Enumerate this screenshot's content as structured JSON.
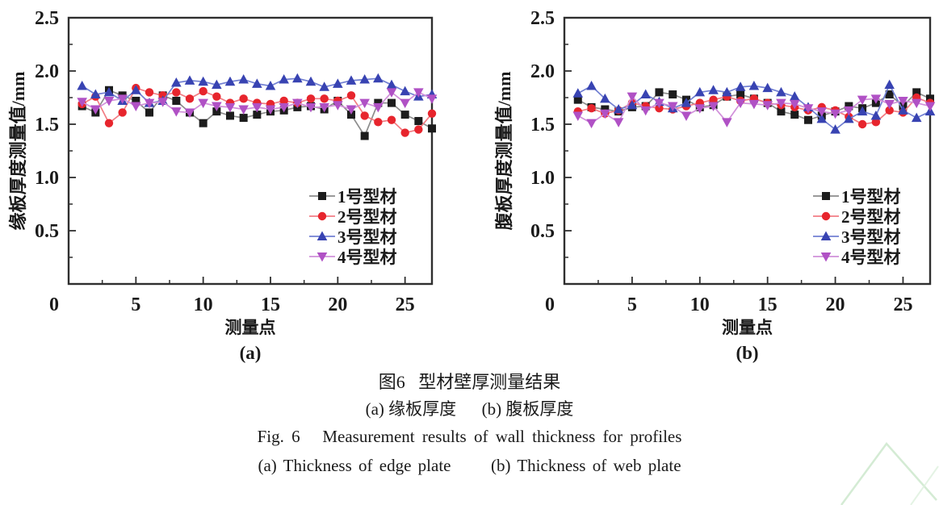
{
  "figure": {
    "caption_zh": "图6   型材壁厚测量结果",
    "caption_sub_zh": "(a) 缘板厚度      (b) 腹板厚度",
    "caption_en": "Fig. 6   Measurement results of wall thickness for profiles",
    "caption_sub_en": "(a) Thickness of edge plate      (b) Thickness of web plate"
  },
  "colors": {
    "axis": "#2f2f2f",
    "series1_marker": "#1c1c1c",
    "series1_line": "#8c8c8c",
    "series2_marker": "#e7252d",
    "series2_line": "#f27d84",
    "series3_marker": "#3843b2",
    "series3_line": "#7280d2",
    "series4_marker": "#b051c5",
    "series4_line": "#d190da",
    "watermark": "#cfe9cf"
  },
  "chart_data": [
    {
      "id": "a",
      "type": "line",
      "panel_label": "(a)",
      "xlabel": "测量点",
      "ylabel": "缘板厚度测量值/mm",
      "xlim": [
        0,
        27
      ],
      "ylim": [
        0,
        2.5
      ],
      "xticks": [
        0,
        5,
        10,
        15,
        20,
        25
      ],
      "xtick_labels": [
        "0",
        "5",
        "10",
        "15",
        "20",
        "25"
      ],
      "xminor": [
        2.5,
        7.5,
        12.5,
        17.5,
        22.5
      ],
      "yticks": [
        0.5,
        1.0,
        1.5,
        2.0,
        2.5
      ],
      "ytick_labels": [
        "0.5",
        "1.0",
        "1.5",
        "2.0",
        "2.5"
      ],
      "yminor": [
        0.25,
        0.75,
        1.25,
        1.75,
        2.25
      ],
      "grid": false,
      "legend_position": "lower right",
      "x": [
        1,
        2,
        3,
        4,
        5,
        6,
        7,
        8,
        9,
        10,
        11,
        12,
        13,
        14,
        15,
        16,
        17,
        18,
        19,
        20,
        21,
        22,
        23,
        24,
        25,
        26,
        27
      ],
      "series": [
        {
          "name": "1号型材",
          "marker": "square",
          "color": "#1c1c1c",
          "line": "#8c8c8c",
          "values": [
            1.67,
            1.61,
            1.82,
            1.77,
            1.72,
            1.61,
            1.77,
            1.72,
            1.61,
            1.51,
            1.62,
            1.58,
            1.56,
            1.59,
            1.62,
            1.63,
            1.66,
            1.67,
            1.64,
            1.72,
            1.59,
            1.39,
            1.7,
            1.7,
            1.59,
            1.53,
            1.46
          ]
        },
        {
          "name": "2号型材",
          "marker": "circle",
          "color": "#e7252d",
          "line": "#f27d84",
          "values": [
            1.69,
            1.76,
            1.51,
            1.61,
            1.84,
            1.8,
            1.77,
            1.8,
            1.74,
            1.81,
            1.76,
            1.7,
            1.74,
            1.7,
            1.69,
            1.72,
            1.7,
            1.74,
            1.74,
            1.72,
            1.77,
            1.58,
            1.52,
            1.54,
            1.42,
            1.45,
            1.6
          ]
        },
        {
          "name": "3号型材",
          "marker": "triangle-up",
          "color": "#3843b2",
          "line": "#7280d2",
          "values": [
            1.86,
            1.78,
            1.8,
            1.72,
            1.82,
            1.7,
            1.72,
            1.89,
            1.91,
            1.9,
            1.87,
            1.9,
            1.92,
            1.88,
            1.86,
            1.92,
            1.93,
            1.9,
            1.85,
            1.88,
            1.91,
            1.92,
            1.93,
            1.87,
            1.81,
            1.76,
            1.78
          ]
        },
        {
          "name": "4号型材",
          "marker": "triangle-down",
          "color": "#b051c5",
          "line": "#d190da",
          "values": [
            1.71,
            1.64,
            1.72,
            1.74,
            1.67,
            1.7,
            1.71,
            1.62,
            1.61,
            1.7,
            1.67,
            1.66,
            1.64,
            1.66,
            1.64,
            1.66,
            1.7,
            1.66,
            1.66,
            1.68,
            1.64,
            1.7,
            1.66,
            1.8,
            1.7,
            1.8,
            1.74
          ]
        }
      ]
    },
    {
      "id": "b",
      "type": "line",
      "panel_label": "(b)",
      "xlabel": "测量点",
      "ylabel": "腹板厚度测量值/mm",
      "xlim": [
        0,
        27
      ],
      "ylim": [
        0,
        2.5
      ],
      "xticks": [
        0,
        5,
        10,
        15,
        20,
        25
      ],
      "xtick_labels": [
        "0",
        "5",
        "10",
        "15",
        "20",
        "25"
      ],
      "xminor": [
        2.5,
        7.5,
        12.5,
        17.5,
        22.5
      ],
      "yticks": [
        0.5,
        1.0,
        1.5,
        2.0,
        2.5
      ],
      "ytick_labels": [
        "0.5",
        "1.0",
        "1.5",
        "2.0",
        "2.5"
      ],
      "yminor": [
        0.25,
        0.75,
        1.25,
        1.75,
        2.25
      ],
      "grid": false,
      "legend_position": "lower right",
      "x": [
        1,
        2,
        3,
        4,
        5,
        6,
        7,
        8,
        9,
        10,
        11,
        12,
        13,
        14,
        15,
        16,
        17,
        18,
        19,
        20,
        21,
        22,
        23,
        24,
        25,
        26,
        27
      ],
      "series": [
        {
          "name": "1号型材",
          "marker": "square",
          "color": "#1c1c1c",
          "line": "#8c8c8c",
          "values": [
            1.73,
            1.66,
            1.64,
            1.62,
            1.66,
            1.67,
            1.8,
            1.78,
            1.73,
            1.66,
            1.68,
            1.76,
            1.78,
            1.74,
            1.7,
            1.62,
            1.59,
            1.54,
            1.58,
            1.62,
            1.67,
            1.65,
            1.7,
            1.78,
            1.67,
            1.8,
            1.74
          ]
        },
        {
          "name": "2号型材",
          "marker": "circle",
          "color": "#e7252d",
          "line": "#f27d84",
          "values": [
            1.62,
            1.65,
            1.6,
            1.63,
            1.7,
            1.67,
            1.65,
            1.64,
            1.67,
            1.7,
            1.73,
            1.76,
            1.72,
            1.74,
            1.7,
            1.68,
            1.66,
            1.63,
            1.66,
            1.63,
            1.57,
            1.5,
            1.52,
            1.63,
            1.61,
            1.75,
            1.7
          ]
        },
        {
          "name": "3号型材",
          "marker": "triangle-up",
          "color": "#3843b2",
          "line": "#7280d2",
          "values": [
            1.79,
            1.86,
            1.74,
            1.64,
            1.68,
            1.78,
            1.71,
            1.65,
            1.7,
            1.8,
            1.82,
            1.8,
            1.85,
            1.86,
            1.84,
            1.8,
            1.76,
            1.66,
            1.55,
            1.45,
            1.55,
            1.62,
            1.58,
            1.87,
            1.63,
            1.56,
            1.62
          ]
        },
        {
          "name": "4号型材",
          "marker": "triangle-down",
          "color": "#b051c5",
          "line": "#d190da",
          "values": [
            1.58,
            1.51,
            1.6,
            1.52,
            1.76,
            1.63,
            1.7,
            1.67,
            1.58,
            1.65,
            1.67,
            1.52,
            1.7,
            1.69,
            1.68,
            1.7,
            1.69,
            1.65,
            1.62,
            1.6,
            1.63,
            1.73,
            1.74,
            1.69,
            1.72,
            1.7,
            1.67
          ]
        }
      ]
    }
  ]
}
